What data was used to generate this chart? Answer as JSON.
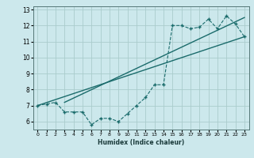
{
  "bg_color": "#cce8ec",
  "grid_color": "#aacccc",
  "line_color": "#1a6b6b",
  "xlabel": "Humidex (Indice chaleur)",
  "xlim": [
    -0.5,
    23.5
  ],
  "ylim": [
    5.5,
    13.2
  ],
  "yticks": [
    6,
    7,
    8,
    9,
    10,
    11,
    12,
    13
  ],
  "xticks": [
    0,
    1,
    2,
    3,
    4,
    5,
    6,
    7,
    8,
    9,
    10,
    11,
    12,
    13,
    14,
    15,
    16,
    17,
    18,
    19,
    20,
    21,
    22,
    23
  ],
  "dashed_x": [
    0,
    1,
    2,
    3,
    4,
    5,
    6,
    7,
    8,
    9,
    10,
    11,
    12,
    13,
    14,
    15,
    16,
    17,
    18,
    19,
    20,
    21,
    22,
    23
  ],
  "dashed_y": [
    7.0,
    7.1,
    7.2,
    6.6,
    6.6,
    6.6,
    5.8,
    6.2,
    6.2,
    6.0,
    6.5,
    7.0,
    7.5,
    8.3,
    8.3,
    12.0,
    12.0,
    11.8,
    11.9,
    12.4,
    11.8,
    12.6,
    12.1,
    11.3
  ],
  "line1_x": [
    0,
    23
  ],
  "line1_y": [
    7.0,
    11.3
  ],
  "line2_x": [
    3,
    23
  ],
  "line2_y": [
    7.2,
    12.5
  ]
}
